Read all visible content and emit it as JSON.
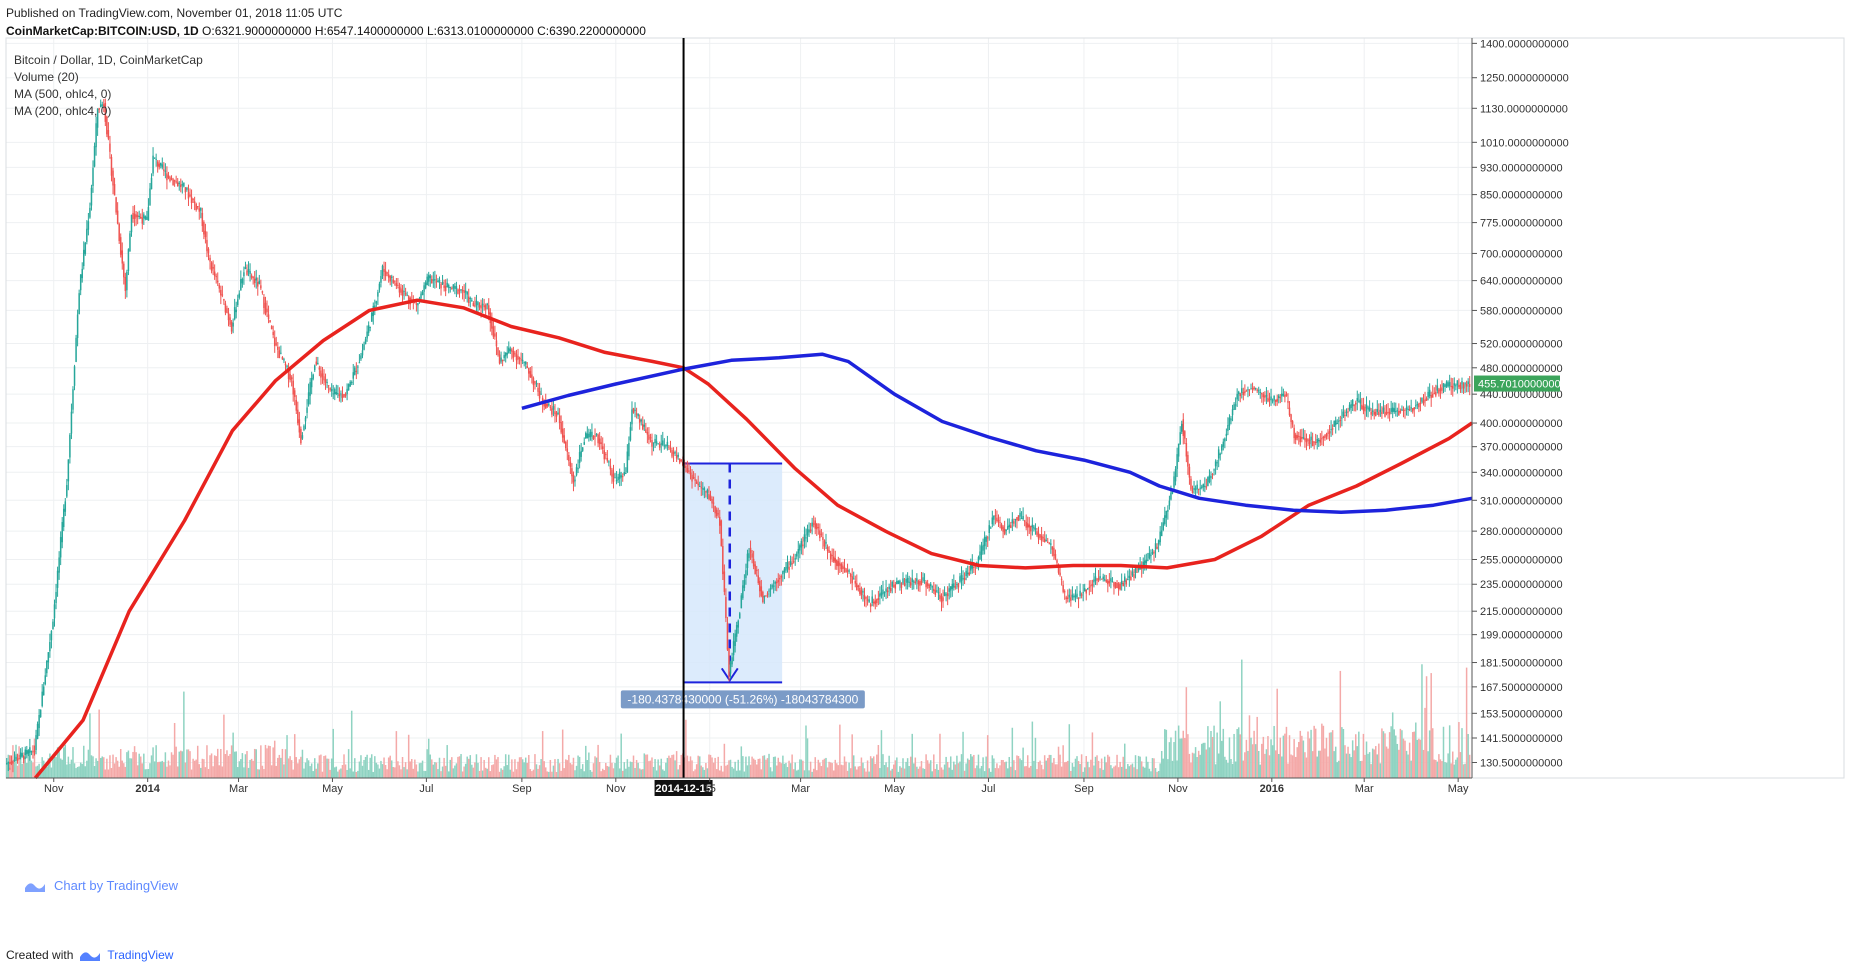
{
  "header": {
    "published": "Published on TradingView.com, November 01, 2018 11:05 UTC",
    "symbol": "CoinMarketCap:BITCOIN:USD, 1D",
    "o_label": "O:",
    "o": "6321.9000000000",
    "h_label": "H:",
    "h": "6547.1400000000",
    "l_label": "L:",
    "l": "6313.0100000000",
    "c_label": "C:",
    "c": "6390.2200000000"
  },
  "legend": {
    "title": "Bitcoin / Dollar, 1D, CoinMarketCap",
    "volume": "Volume (20)",
    "ma500": "MA (500, ohlc4, 0)",
    "ma200": "MA (200, ohlc4, 0)"
  },
  "watermark": {
    "text": "Chart by TradingView",
    "icon": "tradingview-logo-icon"
  },
  "footer": {
    "created_with": "Created with",
    "brand": "TradingView",
    "icon": "tradingview-logo-icon"
  },
  "chart_data": {
    "type": "candlestick",
    "title": "Bitcoin / Dollar, 1D, CoinMarketCap",
    "y_scale": "log",
    "ylim": [
      124,
      1425
    ],
    "x_range": [
      "2013-10-01",
      "2016-05-10"
    ],
    "price_ticks": [
      "1400.0000000000",
      "1250.0000000000",
      "1130.0000000000",
      "1010.0000000000",
      "930.0000000000",
      "850.0000000000",
      "775.0000000000",
      "700.0000000000",
      "640.0000000000",
      "580.0000000000",
      "520.0000000000",
      "480.0000000000",
      "440.0000000000",
      "400.0000000000",
      "370.0000000000",
      "340.0000000000",
      "310.0000000000",
      "280.0000000000",
      "255.0000000000",
      "235.0000000000",
      "215.0000000000",
      "199.0000000000",
      "181.5000000000",
      "167.5000000000",
      "153.5000000000",
      "141.5000000000",
      "130.5000000000"
    ],
    "x_ticks": [
      {
        "date": "2013-11-01",
        "label": "Nov"
      },
      {
        "date": "2014-01-01",
        "label": "2014"
      },
      {
        "date": "2014-03-01",
        "label": "Mar"
      },
      {
        "date": "2014-05-01",
        "label": "May"
      },
      {
        "date": "2014-07-01",
        "label": "Jul"
      },
      {
        "date": "2014-09-01",
        "label": "Sep"
      },
      {
        "date": "2014-11-01",
        "label": "Nov"
      },
      {
        "date": "2015-01-01",
        "label": "15"
      },
      {
        "date": "2015-03-01",
        "label": "Mar"
      },
      {
        "date": "2015-05-01",
        "label": "May"
      },
      {
        "date": "2015-07-01",
        "label": "Jul"
      },
      {
        "date": "2015-09-01",
        "label": "Sep"
      },
      {
        "date": "2015-11-01",
        "label": "Nov"
      },
      {
        "date": "2016-01-01",
        "label": "2016"
      },
      {
        "date": "2016-03-01",
        "label": "Mar"
      },
      {
        "date": "2016-05-01",
        "label": "May"
      }
    ],
    "price_path": [
      [
        "2013-10-01",
        130
      ],
      [
        "2013-10-20",
        136
      ],
      [
        "2013-11-01",
        210
      ],
      [
        "2013-11-10",
        330
      ],
      [
        "2013-11-18",
        620
      ],
      [
        "2013-11-25",
        820
      ],
      [
        "2013-11-30",
        1130
      ],
      [
        "2013-12-04",
        1150
      ],
      [
        "2013-12-10",
        880
      ],
      [
        "2013-12-18",
        620
      ],
      [
        "2013-12-22",
        800
      ],
      [
        "2014-01-01",
        780
      ],
      [
        "2014-01-05",
        960
      ],
      [
        "2014-01-15",
        900
      ],
      [
        "2014-01-25",
        870
      ],
      [
        "2014-02-05",
        800
      ],
      [
        "2014-02-10",
        690
      ],
      [
        "2014-02-25",
        550
      ],
      [
        "2014-03-05",
        665
      ],
      [
        "2014-03-15",
        630
      ],
      [
        "2014-03-25",
        520
      ],
      [
        "2014-04-05",
        460
      ],
      [
        "2014-04-11",
        380
      ],
      [
        "2014-04-20",
        490
      ],
      [
        "2014-05-01",
        440
      ],
      [
        "2014-05-10",
        440
      ],
      [
        "2014-05-20",
        500
      ],
      [
        "2014-05-28",
        580
      ],
      [
        "2014-06-03",
        665
      ],
      [
        "2014-06-15",
        620
      ],
      [
        "2014-06-25",
        590
      ],
      [
        "2014-07-03",
        645
      ],
      [
        "2014-07-15",
        625
      ],
      [
        "2014-07-25",
        620
      ],
      [
        "2014-08-01",
        590
      ],
      [
        "2014-08-10",
        590
      ],
      [
        "2014-08-18",
        490
      ],
      [
        "2014-08-25",
        510
      ],
      [
        "2014-09-05",
        480
      ],
      [
        "2014-09-15",
        430
      ],
      [
        "2014-09-25",
        410
      ],
      [
        "2014-10-05",
        330
      ],
      [
        "2014-10-12",
        380
      ],
      [
        "2014-10-20",
        385
      ],
      [
        "2014-11-01",
        330
      ],
      [
        "2014-11-08",
        340
      ],
      [
        "2014-11-12",
        420
      ],
      [
        "2014-11-25",
        375
      ],
      [
        "2014-12-05",
        370
      ],
      [
        "2014-12-15",
        350
      ],
      [
        "2014-12-25",
        325
      ],
      [
        "2015-01-01",
        315
      ],
      [
        "2015-01-08",
        290
      ],
      [
        "2015-01-14",
        175
      ],
      [
        "2015-01-20",
        210
      ],
      [
        "2015-01-27",
        265
      ],
      [
        "2015-02-05",
        225
      ],
      [
        "2015-02-15",
        240
      ],
      [
        "2015-02-25",
        255
      ],
      [
        "2015-03-10",
        290
      ],
      [
        "2015-03-20",
        260
      ],
      [
        "2015-04-01",
        245
      ],
      [
        "2015-04-15",
        220
      ],
      [
        "2015-05-01",
        235
      ],
      [
        "2015-05-20",
        238
      ],
      [
        "2015-06-01",
        225
      ],
      [
        "2015-06-15",
        240
      ],
      [
        "2015-06-25",
        255
      ],
      [
        "2015-07-05",
        295
      ],
      [
        "2015-07-12",
        280
      ],
      [
        "2015-07-20",
        295
      ],
      [
        "2015-08-01",
        280
      ],
      [
        "2015-08-12",
        265
      ],
      [
        "2015-08-20",
        225
      ],
      [
        "2015-08-28",
        225
      ],
      [
        "2015-09-10",
        240
      ],
      [
        "2015-09-25",
        235
      ],
      [
        "2015-10-10",
        250
      ],
      [
        "2015-10-20",
        270
      ],
      [
        "2015-10-30",
        330
      ],
      [
        "2015-11-04",
        405
      ],
      [
        "2015-11-10",
        320
      ],
      [
        "2015-11-20",
        325
      ],
      [
        "2015-11-30",
        370
      ],
      [
        "2015-12-10",
        440
      ],
      [
        "2015-12-20",
        450
      ],
      [
        "2016-01-01",
        430
      ],
      [
        "2016-01-10",
        440
      ],
      [
        "2016-01-16",
        385
      ],
      [
        "2016-01-30",
        375
      ],
      [
        "2016-02-10",
        395
      ],
      [
        "2016-02-25",
        430
      ],
      [
        "2016-03-05",
        415
      ],
      [
        "2016-03-20",
        415
      ],
      [
        "2016-04-01",
        420
      ],
      [
        "2016-04-20",
        450
      ],
      [
        "2016-05-05",
        455
      ]
    ],
    "ma200": [
      [
        "2013-10-20",
        124
      ],
      [
        "2013-11-20",
        150
      ],
      [
        "2013-12-20",
        215
      ],
      [
        "2014-01-25",
        290
      ],
      [
        "2014-02-25",
        390
      ],
      [
        "2014-03-25",
        460
      ],
      [
        "2014-04-25",
        525
      ],
      [
        "2014-05-25",
        580
      ],
      [
        "2014-06-25",
        600
      ],
      [
        "2014-07-25",
        585
      ],
      [
        "2014-08-25",
        550
      ],
      [
        "2014-09-25",
        530
      ],
      [
        "2014-10-25",
        505
      ],
      [
        "2014-11-25",
        490
      ],
      [
        "2014-12-15",
        480
      ],
      [
        "2014-12-31",
        455
      ],
      [
        "2015-01-25",
        405
      ],
      [
        "2015-02-25",
        345
      ],
      [
        "2015-03-25",
        305
      ],
      [
        "2015-04-25",
        280
      ],
      [
        "2015-05-25",
        260
      ],
      [
        "2015-06-25",
        250
      ],
      [
        "2015-07-25",
        248
      ],
      [
        "2015-08-25",
        250
      ],
      [
        "2015-09-25",
        250
      ],
      [
        "2015-10-25",
        248
      ],
      [
        "2015-11-25",
        255
      ],
      [
        "2015-12-25",
        275
      ],
      [
        "2016-01-25",
        305
      ],
      [
        "2016-02-25",
        325
      ],
      [
        "2016-03-25",
        350
      ],
      [
        "2016-04-25",
        380
      ],
      [
        "2016-05-10",
        400
      ]
    ],
    "ma500": [
      [
        "2014-09-01",
        420
      ],
      [
        "2014-10-01",
        438
      ],
      [
        "2014-11-01",
        455
      ],
      [
        "2014-12-15",
        478
      ],
      [
        "2015-01-15",
        492
      ],
      [
        "2015-02-15",
        496
      ],
      [
        "2015-03-15",
        502
      ],
      [
        "2015-04-01",
        490
      ],
      [
        "2015-05-01",
        440
      ],
      [
        "2015-06-01",
        402
      ],
      [
        "2015-07-01",
        382
      ],
      [
        "2015-08-01",
        365
      ],
      [
        "2015-09-01",
        354
      ],
      [
        "2015-10-01",
        340
      ],
      [
        "2015-10-20",
        325
      ],
      [
        "2015-11-15",
        312
      ],
      [
        "2015-12-15",
        305
      ],
      [
        "2016-01-15",
        300
      ],
      [
        "2016-02-15",
        298
      ],
      [
        "2016-03-15",
        300
      ],
      [
        "2016-04-15",
        305
      ],
      [
        "2016-05-10",
        312
      ]
    ],
    "vertical_marker": {
      "date": "2014-12-15",
      "label": "2014-12-15"
    },
    "measure_box": {
      "from_date": "2014-12-15",
      "to_date": "2015-02-17",
      "top": 350,
      "bottom": 170,
      "arrow_date": "2015-01-14",
      "label": "-180.4378430000 (-51.26%) -18043784300"
    },
    "last_price": {
      "value": 455.701,
      "label": "455.7010000000"
    },
    "colors": {
      "up": "#26a69a",
      "down": "#ef5350",
      "up_vol": "#8fd3c2",
      "down_vol": "#f4a9a8",
      "ma200": "#e8231e",
      "ma500": "#1d23dc",
      "box": "#d6e8fb",
      "box_line": "#1d23dc",
      "label_bg": "#7b9bc7",
      "last_price_bg": "#3ca55c"
    }
  }
}
